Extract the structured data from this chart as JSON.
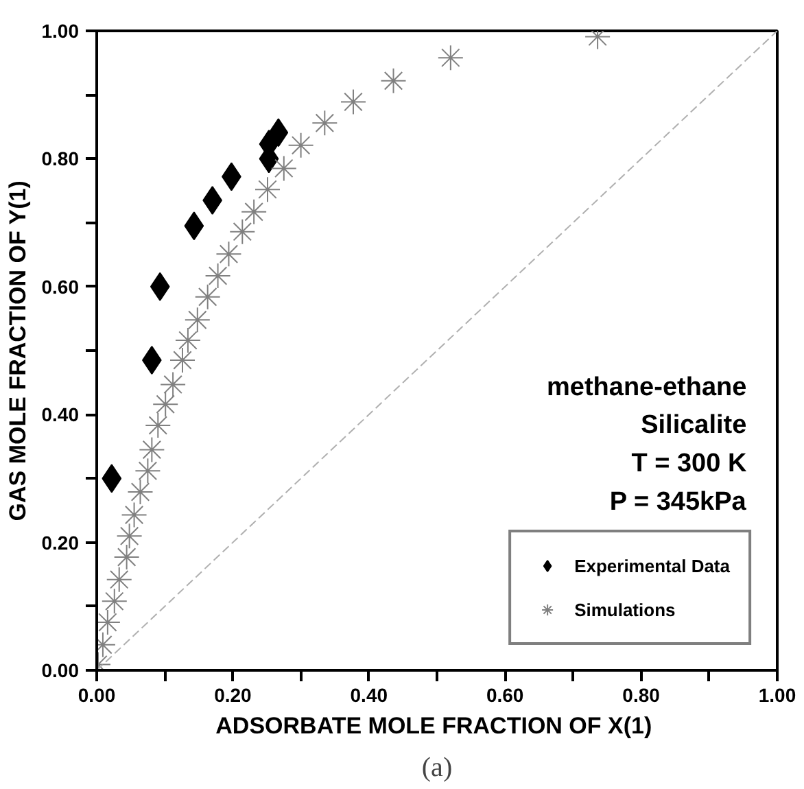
{
  "chart_data": {
    "type": "scatter",
    "xlabel": "ADSORBATE MOLE FRACTION OF  X(1)",
    "ylabel": "GAS MOLE FRACTION OF Y(1)",
    "annotations": [
      "methane-ethane",
      "Silicalite",
      "T = 300 K",
      "P = 345kPa",
      "(a)"
    ],
    "xlim": [
      0,
      1
    ],
    "ylim": [
      0,
      1
    ],
    "xticks": [
      {
        "value": 0,
        "label": "0.00"
      },
      {
        "value": 0.1,
        "label": null
      },
      {
        "value": 0.2,
        "label": "0.20"
      },
      {
        "value": 0.3,
        "label": null
      },
      {
        "value": 0.4,
        "label": "0.40"
      },
      {
        "value": 0.5,
        "label": null
      },
      {
        "value": 0.6,
        "label": "0.60"
      },
      {
        "value": 0.7,
        "label": null
      },
      {
        "value": 0.8,
        "label": "0.80"
      },
      {
        "value": 0.9,
        "label": null
      },
      {
        "value": 1,
        "label": "1.00"
      }
    ],
    "yticks": [
      {
        "value": 0,
        "label": "0.00"
      },
      {
        "value": 0.1,
        "label": null
      },
      {
        "value": 0.2,
        "label": "0.20"
      },
      {
        "value": 0.3,
        "label": null
      },
      {
        "value": 0.4,
        "label": "0.40"
      },
      {
        "value": 0.5,
        "label": null
      },
      {
        "value": 0.6,
        "label": "0.60"
      },
      {
        "value": 0.7,
        "label": null
      },
      {
        "value": 0.8,
        "label": "0.80"
      },
      {
        "value": 0.9,
        "label": null
      },
      {
        "value": 1,
        "label": "1.00"
      }
    ],
    "grid": false,
    "legend": "bottom right",
    "series": [
      {
        "name": "Experimental Data",
        "color": "#000000",
        "marker": "diamond",
        "x": [
          0.022,
          0.081,
          0.093,
          0.143,
          0.17,
          0.198,
          0.253,
          0.253,
          0.267
        ],
        "values": [
          0.3,
          0.485,
          0.6,
          0.695,
          0.735,
          0.772,
          0.8,
          0.823,
          0.841
        ]
      },
      {
        "name": "Simulations",
        "color": "#808080",
        "marker": "cross",
        "x": [
          0.002,
          0.009,
          0.016,
          0.026,
          0.033,
          0.044,
          0.048,
          0.055,
          0.064,
          0.075,
          0.081,
          0.09,
          0.101,
          0.112,
          0.126,
          0.134,
          0.148,
          0.163,
          0.178,
          0.194,
          0.214,
          0.231,
          0.251,
          0.275,
          0.3,
          0.335,
          0.377,
          0.436,
          0.52,
          0.736
        ],
        "values": [
          0.009,
          0.04,
          0.075,
          0.108,
          0.142,
          0.177,
          0.21,
          0.243,
          0.279,
          0.312,
          0.345,
          0.383,
          0.416,
          0.447,
          0.485,
          0.516,
          0.548,
          0.584,
          0.617,
          0.651,
          0.686,
          0.717,
          0.752,
          0.785,
          0.821,
          0.856,
          0.889,
          0.922,
          0.958,
          0.991
        ]
      },
      {
        "type": "line",
        "color": "#b0b0b0",
        "line_style": "dashed",
        "marker": "none",
        "x": [
          0,
          1
        ],
        "values": [
          0,
          1
        ]
      }
    ]
  }
}
